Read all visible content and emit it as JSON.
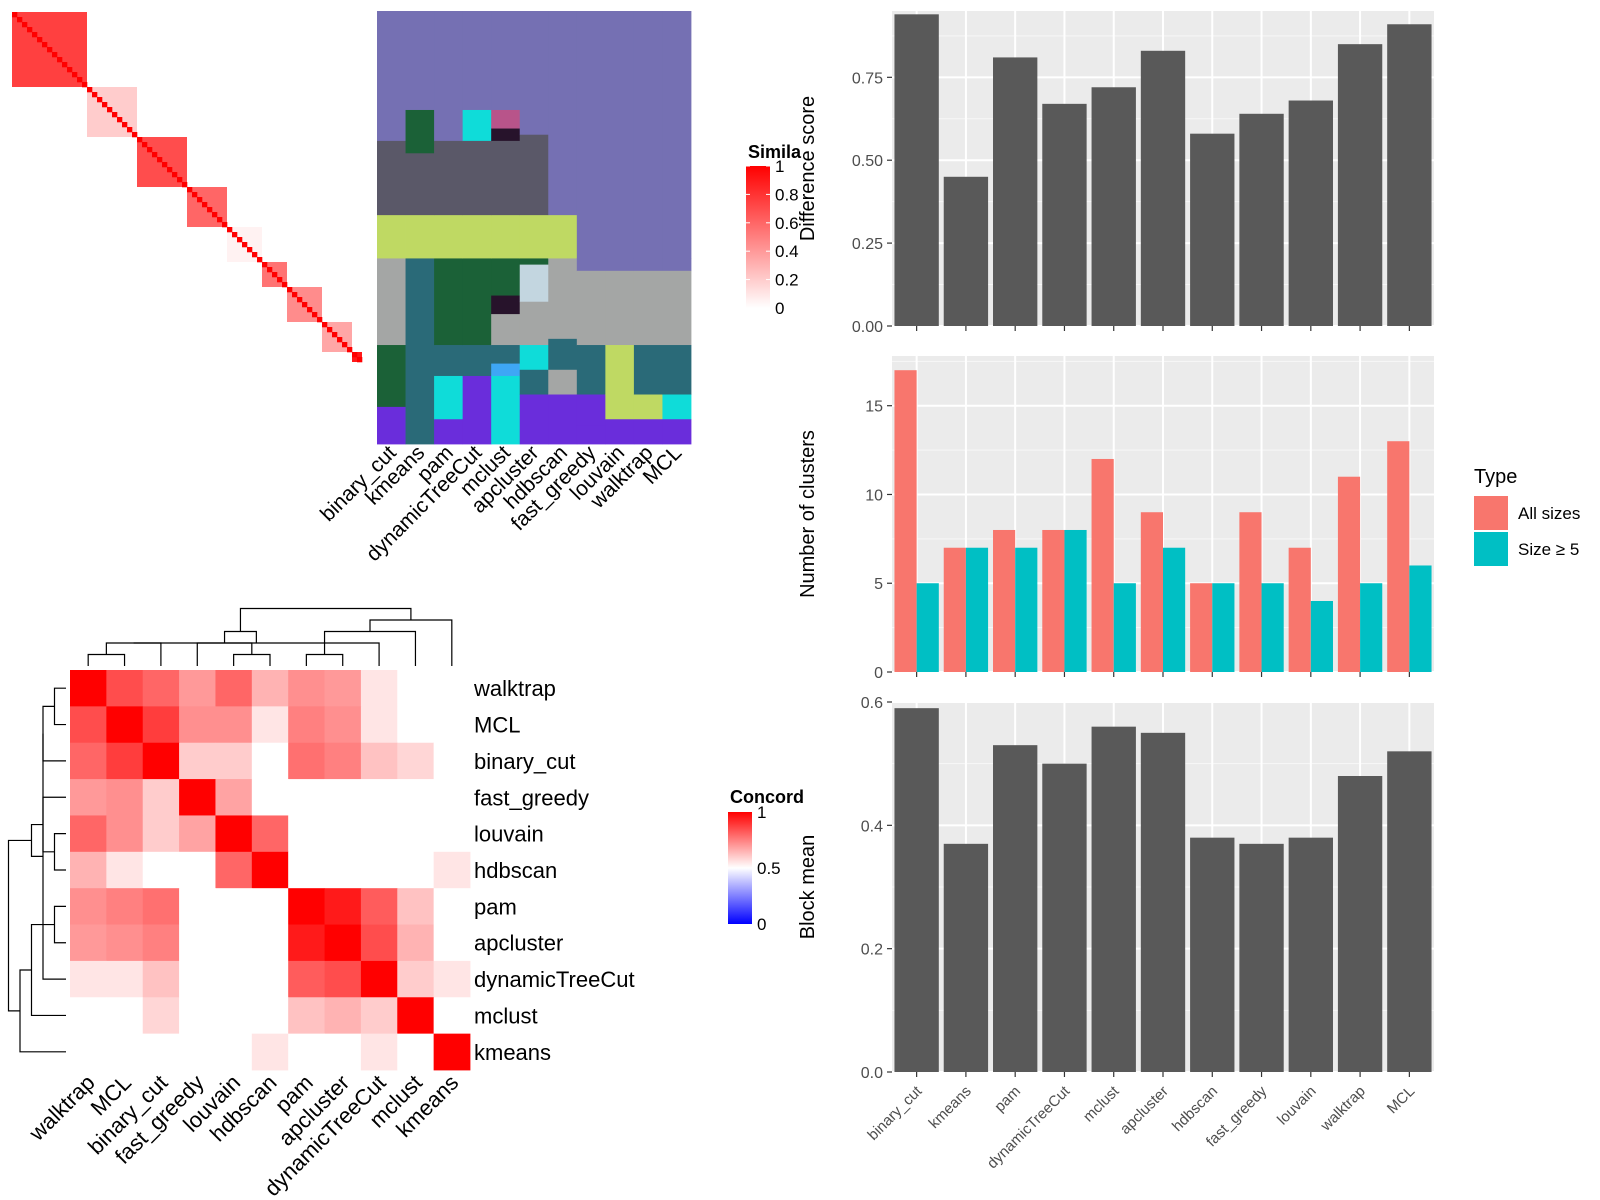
{
  "figure": {
    "methods": [
      "binary_cut",
      "kmeans",
      "pam",
      "dynamicTreeCut",
      "mclust",
      "apcluster",
      "hdbscan",
      "fast_greedy",
      "louvain",
      "walktrap",
      "MCL"
    ],
    "heatmap_top_legend_title": "Simila",
    "heatmap_bottom_legend_title": "Concord",
    "type_legend": {
      "title": "Type",
      "all_label": "All sizes",
      "size_label": "Size ≥ 5"
    },
    "colors": {
      "bar_fill": "#595959",
      "panel_bg": "#ebebeb",
      "all_sizes": "#f8766d",
      "size_ge5": "#00bfc4",
      "heat_high": "#ff0000",
      "heat_low": "#ffffff",
      "concord_low": "#0000ff",
      "cluster_palette": [
        "#7570b3",
        "#5a5868",
        "#bfd963",
        "#1b6137",
        "#2a6a78",
        "#a4a6a5",
        "#6a2ddb",
        "#0fdcd9",
        "#c3d6e0",
        "#3ea7f5",
        "#b8548a",
        "#27132b",
        "#000000"
      ]
    }
  },
  "chart_data": [
    {
      "type": "heatmap",
      "title": "",
      "legend_title": "Simila",
      "legend_ticks": [
        "0",
        "0.2",
        "0.4",
        "0.6",
        "0.8",
        "1"
      ],
      "n": 70,
      "blocks": [
        [
          0,
          15,
          0.75
        ],
        [
          15,
          25,
          0.2
        ],
        [
          25,
          35,
          0.7
        ],
        [
          35,
          43,
          0.6
        ],
        [
          43,
          50,
          0.05
        ],
        [
          50,
          55,
          0.55
        ],
        [
          55,
          62,
          0.45
        ],
        [
          62,
          68,
          0.35
        ],
        [
          68,
          70,
          0.9
        ]
      ]
    },
    {
      "type": "heatmap",
      "title": "",
      "columns": [
        "binary_cut",
        "kmeans",
        "pam",
        "dynamicTreeCut",
        "mclust",
        "apcluster",
        "hdbscan",
        "fast_greedy",
        "louvain",
        "walktrap",
        "MCL"
      ],
      "n_rows": 70,
      "column_segments": [
        [
          [
            0,
            21,
            0
          ],
          [
            21,
            33,
            1
          ],
          [
            33,
            40,
            2
          ],
          [
            40,
            54,
            5
          ],
          [
            54,
            64,
            3
          ],
          [
            64,
            70,
            6
          ]
        ],
        [
          [
            0,
            16,
            0
          ],
          [
            16,
            23,
            3
          ],
          [
            23,
            33,
            1
          ],
          [
            33,
            40,
            2
          ],
          [
            40,
            44,
            4
          ],
          [
            44,
            70,
            4
          ]
        ],
        [
          [
            0,
            21,
            0
          ],
          [
            21,
            33,
            1
          ],
          [
            33,
            40,
            2
          ],
          [
            40,
            54,
            3
          ],
          [
            54,
            59,
            4
          ],
          [
            59,
            66,
            7
          ],
          [
            66,
            70,
            6
          ]
        ],
        [
          [
            0,
            16,
            0
          ],
          [
            16,
            21,
            7
          ],
          [
            21,
            33,
            1
          ],
          [
            33,
            40,
            2
          ],
          [
            40,
            54,
            3
          ],
          [
            54,
            59,
            4
          ],
          [
            59,
            70,
            6
          ]
        ],
        [
          [
            0,
            16,
            0
          ],
          [
            16,
            19,
            10
          ],
          [
            19,
            21,
            11
          ],
          [
            21,
            33,
            1
          ],
          [
            33,
            40,
            2
          ],
          [
            40,
            46,
            3
          ],
          [
            46,
            49,
            11
          ],
          [
            49,
            54,
            5
          ],
          [
            54,
            57,
            4
          ],
          [
            57,
            59,
            9
          ],
          [
            59,
            70,
            7
          ]
        ],
        [
          [
            0,
            20,
            0
          ],
          [
            20,
            33,
            1
          ],
          [
            33,
            40,
            2
          ],
          [
            40,
            41,
            3
          ],
          [
            41,
            47,
            8
          ],
          [
            47,
            54,
            5
          ],
          [
            54,
            58,
            7
          ],
          [
            58,
            62,
            4
          ],
          [
            62,
            70,
            6
          ]
        ],
        [
          [
            0,
            33,
            0
          ],
          [
            33,
            40,
            2
          ],
          [
            40,
            53,
            5
          ],
          [
            53,
            58,
            4
          ],
          [
            58,
            62,
            5
          ],
          [
            62,
            70,
            6
          ]
        ],
        [
          [
            0,
            40,
            0
          ],
          [
            40,
            42,
            0
          ],
          [
            42,
            54,
            5
          ],
          [
            54,
            62,
            4
          ],
          [
            62,
            67,
            6
          ],
          [
            67,
            70,
            6
          ]
        ],
        [
          [
            0,
            40,
            0
          ],
          [
            40,
            42,
            0
          ],
          [
            42,
            54,
            5
          ],
          [
            54,
            62,
            2
          ],
          [
            62,
            66,
            2
          ],
          [
            66,
            70,
            6
          ]
        ],
        [
          [
            0,
            40,
            0
          ],
          [
            40,
            42,
            0
          ],
          [
            42,
            54,
            5
          ],
          [
            54,
            62,
            4
          ],
          [
            62,
            66,
            2
          ],
          [
            66,
            70,
            6
          ]
        ],
        [
          [
            0,
            40,
            0
          ],
          [
            40,
            42,
            0
          ],
          [
            42,
            54,
            5
          ],
          [
            54,
            62,
            4
          ],
          [
            62,
            66,
            7
          ],
          [
            66,
            70,
            6
          ]
        ]
      ]
    },
    {
      "type": "heatmap",
      "title": "",
      "legend_title": "Concord",
      "legend_ticks": [
        "0",
        "0.5",
        "1"
      ],
      "order": [
        "walktrap",
        "MCL",
        "binary_cut",
        "fast_greedy",
        "louvain",
        "hdbscan",
        "pam",
        "apcluster",
        "dynamicTreeCut",
        "mclust",
        "kmeans"
      ],
      "matrix": [
        [
          1.0,
          0.85,
          0.8,
          0.7,
          0.8,
          0.65,
          0.72,
          0.7,
          0.55,
          0.4,
          0.35
        ],
        [
          0.85,
          1.0,
          0.88,
          0.72,
          0.72,
          0.55,
          0.75,
          0.72,
          0.55,
          0.5,
          0.35
        ],
        [
          0.8,
          0.88,
          1.0,
          0.6,
          0.6,
          0.5,
          0.78,
          0.75,
          0.62,
          0.58,
          0.45
        ],
        [
          0.7,
          0.72,
          0.6,
          1.0,
          0.68,
          0.3,
          0.45,
          0.42,
          0.32,
          0.18,
          0.15
        ],
        [
          0.8,
          0.72,
          0.6,
          0.68,
          1.0,
          0.8,
          0.48,
          0.45,
          0.3,
          0.18,
          0.25
        ],
        [
          0.65,
          0.55,
          0.5,
          0.3,
          0.8,
          1.0,
          0.48,
          0.45,
          0.32,
          0.2,
          0.55
        ],
        [
          0.72,
          0.75,
          0.78,
          0.45,
          0.48,
          0.48,
          1.0,
          0.95,
          0.82,
          0.62,
          0.35
        ],
        [
          0.7,
          0.72,
          0.75,
          0.42,
          0.45,
          0.45,
          0.95,
          1.0,
          0.85,
          0.65,
          0.4
        ],
        [
          0.55,
          0.55,
          0.62,
          0.32,
          0.3,
          0.32,
          0.82,
          0.85,
          1.0,
          0.6,
          0.55
        ],
        [
          0.4,
          0.5,
          0.58,
          0.18,
          0.18,
          0.2,
          0.62,
          0.65,
          0.6,
          1.0,
          0.3
        ],
        [
          0.35,
          0.35,
          0.45,
          0.15,
          0.25,
          0.55,
          0.35,
          0.4,
          0.55,
          0.3,
          1.0
        ]
      ]
    },
    {
      "type": "bar",
      "title": "",
      "xlabel": "",
      "ylabel": "Difference score",
      "categories": [
        "binary_cut",
        "kmeans",
        "pam",
        "dynamicTreeCut",
        "mclust",
        "apcluster",
        "hdbscan",
        "fast_greedy",
        "louvain",
        "walktrap",
        "MCL"
      ],
      "values": [
        0.94,
        0.45,
        0.81,
        0.67,
        0.72,
        0.83,
        0.58,
        0.64,
        0.68,
        0.85,
        0.91
      ],
      "ylim": [
        0,
        0.95
      ],
      "yticks": [
        0,
        0.25,
        0.5,
        0.75
      ],
      "ytick_labels": [
        "0.00",
        "0.25",
        "0.50",
        "0.75"
      ]
    },
    {
      "type": "bar",
      "title": "",
      "xlabel": "",
      "ylabel": "Number of clusters",
      "categories": [
        "binary_cut",
        "kmeans",
        "pam",
        "dynamicTreeCut",
        "mclust",
        "apcluster",
        "hdbscan",
        "fast_greedy",
        "louvain",
        "walktrap",
        "MCL"
      ],
      "series": [
        {
          "name": "All sizes",
          "values": [
            17,
            7,
            8,
            8,
            12,
            9,
            5,
            9,
            7,
            11,
            13
          ]
        },
        {
          "name": "Size ≥ 5",
          "values": [
            5,
            7,
            7,
            8,
            5,
            7,
            5,
            5,
            4,
            5,
            6
          ]
        }
      ],
      "ylim": [
        0,
        17.8
      ],
      "yticks": [
        0,
        5,
        10,
        15
      ],
      "legend": "right"
    },
    {
      "type": "bar",
      "title": "",
      "xlabel": "",
      "ylabel": "Block mean",
      "categories": [
        "binary_cut",
        "kmeans",
        "pam",
        "dynamicTreeCut",
        "mclust",
        "apcluster",
        "hdbscan",
        "fast_greedy",
        "louvain",
        "walktrap",
        "MCL"
      ],
      "values": [
        0.59,
        0.37,
        0.53,
        0.5,
        0.56,
        0.55,
        0.38,
        0.37,
        0.38,
        0.48,
        0.52
      ],
      "ylim": [
        0,
        0.6
      ],
      "yticks": [
        0,
        0.2,
        0.4,
        0.6
      ],
      "ytick_labels": [
        "0.0",
        "0.2",
        "0.4",
        "0.6"
      ]
    }
  ]
}
